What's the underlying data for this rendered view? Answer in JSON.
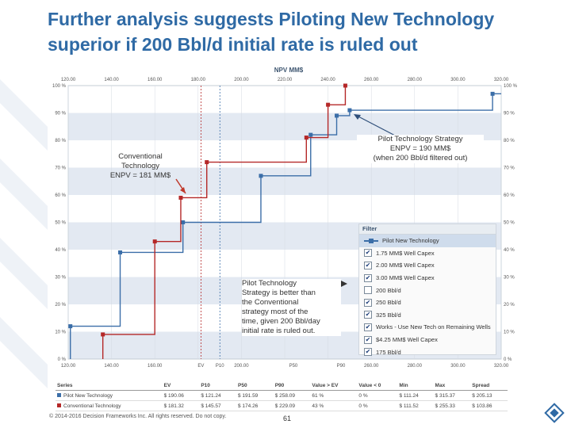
{
  "slide": {
    "title_line1": "Further analysis suggests Piloting New Technology",
    "title_line2": "superior if 200 Bbl/d initial rate is ruled out",
    "footer": "© 2014-2016 Decision Frameworks Inc. All rights reserved. Do not copy.",
    "page_number": "61"
  },
  "callouts": {
    "conventional": [
      "Conventional",
      "Technology",
      "ENPV = 181 MM$"
    ],
    "pilot": [
      "Pilot Technology Strategy",
      "ENPV = 190 MM$",
      "(when 200 Bbl/d filtered out)"
    ],
    "comparison": [
      "Pilot Technology",
      "Strategy is better than",
      "the Conventional",
      "strategy most of the",
      "time, given 200 Bbl/day",
      "initial rate is ruled out."
    ]
  },
  "filter": {
    "title": "Filter",
    "legend_item": "Pilot New Technology",
    "items": [
      {
        "label": "1.75 MM$ Well Capex",
        "checked": true
      },
      {
        "label": "2.00 MM$ Well Capex",
        "checked": true
      },
      {
        "label": "3.00 MM$ Well Capex",
        "checked": true
      },
      {
        "label": "200 Bbl/d",
        "checked": false
      },
      {
        "label": "250 Bbl/d",
        "checked": true
      },
      {
        "label": "325 Bbl/d",
        "checked": true
      },
      {
        "label": "Works - Use New Tech on Remaining Wells",
        "checked": true
      },
      {
        "label": "$4.25 MM$ Well Capex",
        "checked": true
      },
      {
        "label": "175 Bbl/d",
        "checked": true
      }
    ]
  },
  "stats_table": {
    "headers": [
      "Series",
      "EV",
      "P10",
      "P50",
      "P90",
      "Value > EV",
      "Value < 0",
      "Min",
      "Max",
      "Spread"
    ],
    "rows": [
      [
        "Pilot New Technology",
        "$ 190.06",
        "$ 121.24",
        "$ 191.59",
        "$ 258.09",
        "61 %",
        "0 %",
        "$ 111.24",
        "$ 315.37",
        "$ 205.13"
      ],
      [
        "Conventional Technology",
        "$ 181.32",
        "$ 145.57",
        "$ 174.26",
        "$ 229.09",
        "43 %",
        "0 %",
        "$ 111.52",
        "$ 255.33",
        "$ 103.86"
      ]
    ]
  },
  "chart_data": {
    "type": "line",
    "title": "NPV MM$",
    "x_ticks": [
      "120.00",
      "140.00",
      "160.00",
      "180.00",
      "200.00",
      "220.00",
      "240.00",
      "260.00",
      "280.00",
      "300.00",
      "320.00"
    ],
    "bottom_ticks": [
      "120.00",
      "140.00",
      "160.00",
      "EV",
      "P10",
      "200.00",
      "P50",
      "P90",
      "260.00",
      "280.00",
      "300.00",
      "320.00"
    ],
    "y_ticks": [
      "0 %",
      "10 %",
      "20 %",
      "30 %",
      "40 %",
      "50 %",
      "60 %",
      "70 %",
      "80 %",
      "90 %",
      "100 %"
    ],
    "y_ticks_right": [
      "0 %",
      "10 %",
      "20 %",
      "30 %",
      "40 %",
      "50 %",
      "60 %",
      "70 %",
      "80 %",
      "90 %",
      "100 %"
    ],
    "xlim": [
      120,
      320
    ],
    "ylim": [
      0,
      100
    ],
    "grid": true,
    "series": [
      {
        "name": "Pilot New Technology",
        "color": "#3b6ea8",
        "points": [
          [
            121,
            0
          ],
          [
            121,
            12
          ],
          [
            144,
            12
          ],
          [
            144,
            39
          ],
          [
            173,
            39
          ],
          [
            173,
            50
          ],
          [
            209,
            50
          ],
          [
            209,
            67
          ],
          [
            232,
            67
          ],
          [
            232,
            82
          ],
          [
            244,
            82
          ],
          [
            244,
            89
          ],
          [
            250,
            89
          ],
          [
            250,
            91
          ],
          [
            316,
            91
          ],
          [
            316,
            97
          ],
          [
            327,
            97
          ]
        ]
      },
      {
        "name": "Conventional Technology",
        "color": "#b52828",
        "points": [
          [
            136,
            0
          ],
          [
            136,
            9
          ],
          [
            160,
            9
          ],
          [
            160,
            43
          ],
          [
            172,
            43
          ],
          [
            172,
            59
          ],
          [
            184,
            59
          ],
          [
            184,
            72
          ],
          [
            230,
            72
          ],
          [
            230,
            81
          ],
          [
            240,
            81
          ],
          [
            240,
            93
          ],
          [
            248,
            93
          ],
          [
            248,
            100
          ]
        ]
      }
    ],
    "ev_lines": [
      {
        "series": "Pilot New Technology",
        "x": 190.06
      },
      {
        "series": "Conventional Technology",
        "x": 181.32
      }
    ]
  }
}
